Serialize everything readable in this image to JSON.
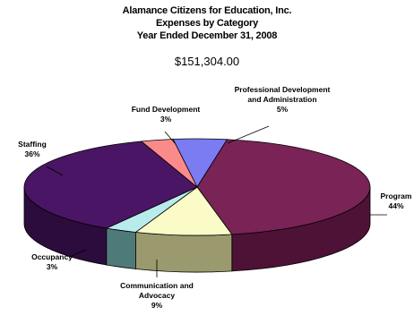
{
  "title_lines": [
    "Alamance Citizens for Education, Inc.",
    "Expenses by Category",
    "Year Ended December 31, 2008"
  ],
  "total": "$151,304.00",
  "chart_data": {
    "type": "pie",
    "three_d": true,
    "legend": "none",
    "slices": [
      {
        "label": "Professional Development and Administration",
        "label_lines": [
          "Professional Development",
          "and Administration"
        ],
        "percent_text": "5%",
        "value": 5,
        "color": "#7b7bf2",
        "side": "#4a4ab0"
      },
      {
        "label": "Program",
        "label_lines": [
          "Program"
        ],
        "percent_text": "44%",
        "value": 44,
        "color": "#7a2357",
        "side": "#4d1236"
      },
      {
        "label": "Communication and Advocacy",
        "label_lines": [
          "Communication and",
          "Advocacy"
        ],
        "percent_text": "9%",
        "value": 9,
        "color": "#fbfbc8",
        "side": "#9a9a6e"
      },
      {
        "label": "Occupancy",
        "label_lines": [
          "Occupancy"
        ],
        "percent_text": "3%",
        "value": 3,
        "color": "#b8ecec",
        "side": "#4f7a7a"
      },
      {
        "label": "Staffing",
        "label_lines": [
          "Staffing"
        ],
        "percent_text": "36%",
        "value": 36,
        "color": "#4a1565",
        "side": "#2c0b3d"
      },
      {
        "label": "Fund Development",
        "label_lines": [
          "Fund Development"
        ],
        "percent_text": "3%",
        "value": 3,
        "color": "#fb8a8a",
        "side": "#b05656"
      }
    ]
  }
}
